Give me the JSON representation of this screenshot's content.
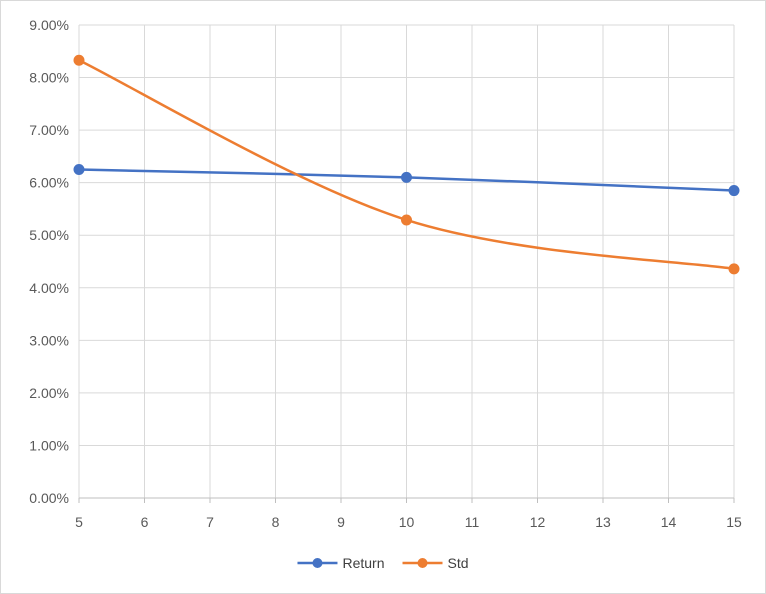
{
  "chart_data": {
    "type": "line",
    "title": "",
    "xlabel": "",
    "ylabel": "",
    "x": [
      5,
      10,
      15
    ],
    "xlim": [
      5,
      15
    ],
    "ylim": [
      0,
      0.09
    ],
    "x_ticks": [
      5,
      6,
      7,
      8,
      9,
      10,
      11,
      12,
      13,
      14,
      15
    ],
    "y_ticks": [
      0,
      0.01,
      0.02,
      0.03,
      0.04,
      0.05,
      0.06,
      0.07,
      0.08,
      0.09
    ],
    "x_tick_labels": [
      "5",
      "6",
      "7",
      "8",
      "9",
      "10",
      "11",
      "12",
      "13",
      "14",
      "15"
    ],
    "y_tick_labels": [
      "0.00%",
      "1.00%",
      "2.00%",
      "3.00%",
      "4.00%",
      "5.00%",
      "6.00%",
      "7.00%",
      "8.00%",
      "9.00%"
    ],
    "grid": "both",
    "smooth": true,
    "legend_position": "bottom",
    "series": [
      {
        "name": "Return",
        "color": "#4472c4",
        "values": [
          0.0625,
          0.061,
          0.0585
        ]
      },
      {
        "name": "Std",
        "color": "#ed7d31",
        "values": [
          0.0833,
          0.0529,
          0.0436
        ]
      }
    ]
  }
}
